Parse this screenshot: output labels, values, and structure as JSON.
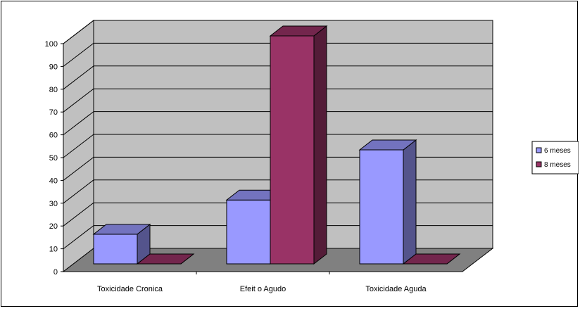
{
  "chart_data": {
    "type": "bar",
    "title": "",
    "xlabel": "",
    "ylabel": "",
    "categories": [
      "Toxicidade Cronica",
      "Efeit o Agudo",
      "Toxicidade Aguda"
    ],
    "series": [
      {
        "name": "6 meses",
        "values": [
          13,
          28,
          50
        ],
        "color": "#9999ff"
      },
      {
        "name": "8 meses",
        "values": [
          0,
          100,
          0
        ],
        "color": "#993366"
      }
    ],
    "ylim": [
      0,
      100
    ],
    "yticks": [
      "0",
      "10",
      "20",
      "30",
      "40",
      "50",
      "60",
      "70",
      "80",
      "90",
      "100"
    ],
    "grid": true,
    "legend_position": "right",
    "three_d": true,
    "colors": {
      "wall": "#c0c0c0",
      "floor": "#808080",
      "gridline": "#000000"
    }
  }
}
